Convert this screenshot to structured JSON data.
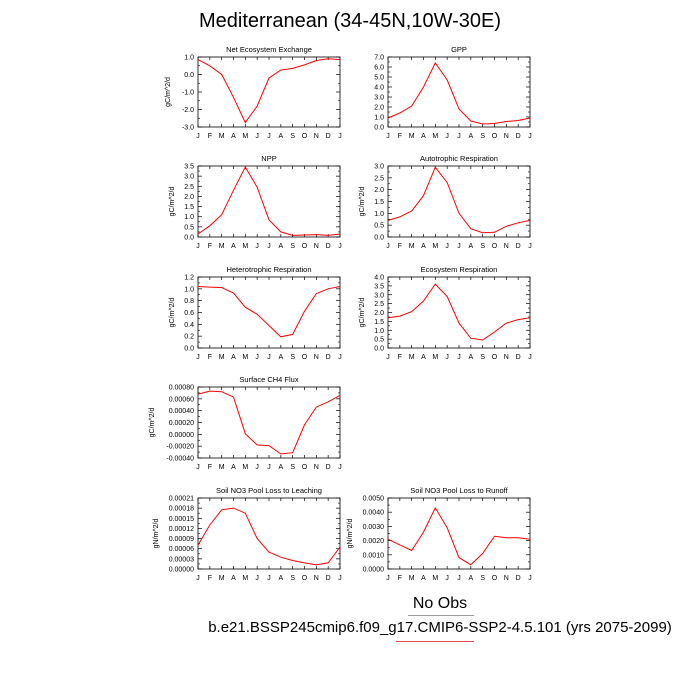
{
  "title": "Mediterranean (34-45N,10W-30E)",
  "legend": {
    "obs_label": "No Obs",
    "case_label": "b.e21.BSSP245cmip6.f09_g17.CMIP6-SSP2-4.5.101 (yrs 2075-2099)"
  },
  "colors": {
    "model_line": "#ff0000",
    "obs_line": "#999999",
    "case_underline": "#e05050"
  },
  "months": [
    "J",
    "F",
    "M",
    "A",
    "M",
    "J",
    "J",
    "A",
    "S",
    "O",
    "N",
    "D",
    "J"
  ],
  "chart_data": [
    {
      "type": "line",
      "title": "Net Ecosystem Exchange",
      "ylabel": "gC/m^2/d",
      "ylim": [
        -3.0,
        1.0
      ],
      "yticks": [
        "-3.0",
        "-2.0",
        "-1.0",
        "0.0",
        "1.0"
      ],
      "ytick_values": [
        -3,
        -2,
        -1,
        0,
        1
      ],
      "values": [
        0.85,
        0.5,
        0.0,
        -1.3,
        -2.75,
        -1.8,
        -0.2,
        0.25,
        0.35,
        0.55,
        0.8,
        0.9,
        0.85
      ]
    },
    {
      "type": "line",
      "title": "GPP",
      "ylabel": "",
      "ylim": [
        0.0,
        7.0
      ],
      "yticks": [
        "0.0",
        "1.0",
        "2.0",
        "3.0",
        "4.0",
        "5.0",
        "6.0",
        "7.0"
      ],
      "ytick_values": [
        0,
        1,
        2,
        3,
        4,
        5,
        6,
        7
      ],
      "values": [
        0.9,
        1.4,
        2.1,
        4.0,
        6.4,
        4.7,
        1.8,
        0.6,
        0.3,
        0.35,
        0.55,
        0.65,
        0.9
      ]
    },
    {
      "type": "line",
      "title": "NPP",
      "ylabel": "gC/m^2/d",
      "ylim": [
        0.0,
        3.5
      ],
      "yticks": [
        "0.0",
        "0.5",
        "1.0",
        "1.5",
        "2.0",
        "2.5",
        "3.0",
        "3.5"
      ],
      "ytick_values": [
        0,
        0.5,
        1,
        1.5,
        2,
        2.5,
        3,
        3.5
      ],
      "values": [
        0.15,
        0.55,
        1.1,
        2.3,
        3.45,
        2.45,
        0.85,
        0.25,
        0.08,
        0.1,
        0.12,
        0.08,
        0.15
      ]
    },
    {
      "type": "line",
      "title": "Autotrophic Respiration",
      "ylabel": "gC/m^2/d",
      "ylim": [
        0.0,
        3.0
      ],
      "yticks": [
        "0.0",
        "0.5",
        "1.0",
        "1.5",
        "2.0",
        "2.5",
        "3.0"
      ],
      "ytick_values": [
        0,
        0.5,
        1,
        1.5,
        2,
        2.5,
        3
      ],
      "values": [
        0.7,
        0.85,
        1.1,
        1.75,
        2.95,
        2.3,
        1.0,
        0.35,
        0.18,
        0.2,
        0.45,
        0.6,
        0.7
      ]
    },
    {
      "type": "line",
      "title": "Heterotrophic Respiration",
      "ylabel": "gC/m^2/d",
      "ylim": [
        0.0,
        1.2
      ],
      "yticks": [
        "0.0",
        "0.2",
        "0.4",
        "0.6",
        "0.8",
        "1.0",
        "1.2"
      ],
      "ytick_values": [
        0,
        0.2,
        0.4,
        0.6,
        0.8,
        1.0,
        1.2
      ],
      "values": [
        1.04,
        1.03,
        1.02,
        0.93,
        0.69,
        0.57,
        0.38,
        0.19,
        0.23,
        0.62,
        0.92,
        1.0,
        1.04
      ]
    },
    {
      "type": "line",
      "title": "Ecosystem Respiration",
      "ylabel": "gC/m^2/d",
      "ylim": [
        0.0,
        4.0
      ],
      "yticks": [
        "0.0",
        "0.5",
        "1.0",
        "1.5",
        "2.0",
        "2.5",
        "3.0",
        "3.5",
        "4.0"
      ],
      "ytick_values": [
        0,
        0.5,
        1,
        1.5,
        2,
        2.5,
        3,
        3.5,
        4
      ],
      "values": [
        1.7,
        1.8,
        2.05,
        2.65,
        3.6,
        2.9,
        1.4,
        0.55,
        0.45,
        0.9,
        1.4,
        1.6,
        1.7
      ]
    },
    {
      "type": "line",
      "title": "Surface CH4 Flux",
      "ylabel": "gC/m^2/d",
      "ylim": [
        -0.0004,
        0.0008
      ],
      "yticks": [
        "-0.00040",
        "-0.00020",
        "0.00000",
        "0.00020",
        "0.00040",
        "0.00060",
        "0.00080"
      ],
      "ytick_values": [
        -0.0004,
        -0.0002,
        0,
        0.0002,
        0.0004,
        0.0006,
        0.0008
      ],
      "values": [
        0.00068,
        0.00073,
        0.00072,
        0.00063,
        1e-05,
        -0.00018,
        -0.00019,
        -0.00033,
        -0.00031,
        0.00016,
        0.00046,
        0.00055,
        0.00066
      ]
    },
    {
      "type": "line",
      "title": "Soil NO3 Pool Loss to Leaching",
      "ylabel": "gN/m^2/d",
      "ylim": [
        0.0,
        0.00021
      ],
      "yticks": [
        "0.00000",
        "0.00003",
        "0.00006",
        "0.00009",
        "0.00012",
        "0.00015",
        "0.00018",
        "0.00021"
      ],
      "ytick_values": [
        0,
        3e-05,
        6e-05,
        9e-05,
        0.00012,
        0.00015,
        0.00018,
        0.00021
      ],
      "values": [
        7e-05,
        0.00013,
        0.000175,
        0.00018,
        0.000165,
        9e-05,
        5e-05,
        3.5e-05,
        2.5e-05,
        1.8e-05,
        1.2e-05,
        1.8e-05,
        6.5e-05
      ]
    },
    {
      "type": "line",
      "title": "Soil NO3 Pool Loss to Runoff",
      "ylabel": "gN/m^2/d",
      "ylim": [
        0.0,
        0.005
      ],
      "yticks": [
        "0.0000",
        "0.0010",
        "0.0020",
        "0.0030",
        "0.0040",
        "0.0050"
      ],
      "ytick_values": [
        0,
        0.001,
        0.002,
        0.003,
        0.004,
        0.005
      ],
      "values": [
        0.0021,
        0.0017,
        0.0013,
        0.0026,
        0.0043,
        0.0029,
        0.0008,
        0.0003,
        0.0011,
        0.0023,
        0.0022,
        0.0022,
        0.0021
      ]
    }
  ]
}
